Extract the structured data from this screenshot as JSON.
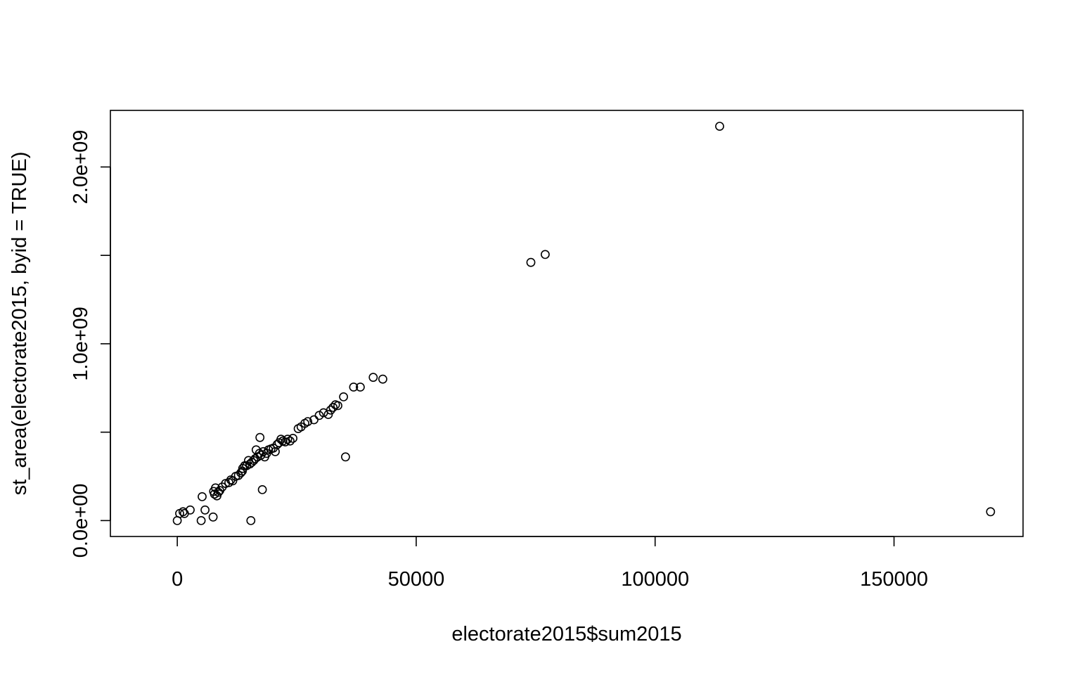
{
  "chart_data": {
    "type": "scatter",
    "title": "",
    "xlabel": "electorate2015$sum2015",
    "ylabel": "st_area(electorate2015, byid = TRUE)",
    "xlim": [
      -14000,
      177000
    ],
    "ylim": [
      -90000000,
      2320000000
    ],
    "xticks": [
      0,
      50000,
      100000,
      150000
    ],
    "xtick_labels": [
      "0",
      "50000",
      "100000",
      "150000"
    ],
    "yticks": [
      0,
      1000000000,
      2000000000
    ],
    "ytick_labels": [
      "0.0e+00",
      "1.0e+09",
      "2.0e+09"
    ],
    "yticks_minor": [
      500000000,
      1500000000
    ],
    "grid": false,
    "legend": "none",
    "marker": "open-circle",
    "points": [
      [
        0,
        0
      ],
      [
        500,
        40000000
      ],
      [
        1200,
        50000000
      ],
      [
        1500,
        40000000
      ],
      [
        2700,
        60000000
      ],
      [
        5000,
        0
      ],
      [
        5200,
        135000000
      ],
      [
        5800,
        60000000
      ],
      [
        7500,
        20000000
      ],
      [
        7600,
        165000000
      ],
      [
        7800,
        150000000
      ],
      [
        8000,
        185000000
      ],
      [
        8300,
        140000000
      ],
      [
        8600,
        160000000
      ],
      [
        8900,
        170000000
      ],
      [
        9400,
        190000000
      ],
      [
        10100,
        210000000
      ],
      [
        10800,
        215000000
      ],
      [
        11200,
        230000000
      ],
      [
        11600,
        225000000
      ],
      [
        12200,
        250000000
      ],
      [
        12800,
        255000000
      ],
      [
        13300,
        270000000
      ],
      [
        13600,
        280000000
      ],
      [
        13700,
        295000000
      ],
      [
        14100,
        310000000
      ],
      [
        14500,
        310000000
      ],
      [
        14900,
        340000000
      ],
      [
        15200,
        320000000
      ],
      [
        15400,
        0
      ],
      [
        15600,
        330000000
      ],
      [
        16000,
        340000000
      ],
      [
        16300,
        350000000
      ],
      [
        16500,
        400000000
      ],
      [
        16800,
        360000000
      ],
      [
        17200,
        380000000
      ],
      [
        17300,
        470000000
      ],
      [
        17500,
        370000000
      ],
      [
        17800,
        175000000
      ],
      [
        18000,
        390000000
      ],
      [
        18300,
        360000000
      ],
      [
        18700,
        380000000
      ],
      [
        19100,
        400000000
      ],
      [
        19600,
        405000000
      ],
      [
        20100,
        410000000
      ],
      [
        20500,
        390000000
      ],
      [
        20900,
        430000000
      ],
      [
        21300,
        440000000
      ],
      [
        21700,
        460000000
      ],
      [
        22100,
        450000000
      ],
      [
        22600,
        445000000
      ],
      [
        23100,
        460000000
      ],
      [
        23600,
        450000000
      ],
      [
        24200,
        465000000
      ],
      [
        25300,
        520000000
      ],
      [
        25900,
        530000000
      ],
      [
        26700,
        550000000
      ],
      [
        27300,
        560000000
      ],
      [
        28600,
        570000000
      ],
      [
        29700,
        595000000
      ],
      [
        30600,
        610000000
      ],
      [
        31600,
        600000000
      ],
      [
        32100,
        625000000
      ],
      [
        32600,
        640000000
      ],
      [
        33100,
        655000000
      ],
      [
        33600,
        650000000
      ],
      [
        34800,
        700000000
      ],
      [
        35200,
        360000000
      ],
      [
        36900,
        755000000
      ],
      [
        38300,
        755000000
      ],
      [
        41000,
        810000000
      ],
      [
        43000,
        800000000
      ],
      [
        74000,
        1460000000
      ],
      [
        77000,
        1505000000
      ],
      [
        113500,
        2230000000
      ],
      [
        170200,
        50000000
      ]
    ]
  }
}
